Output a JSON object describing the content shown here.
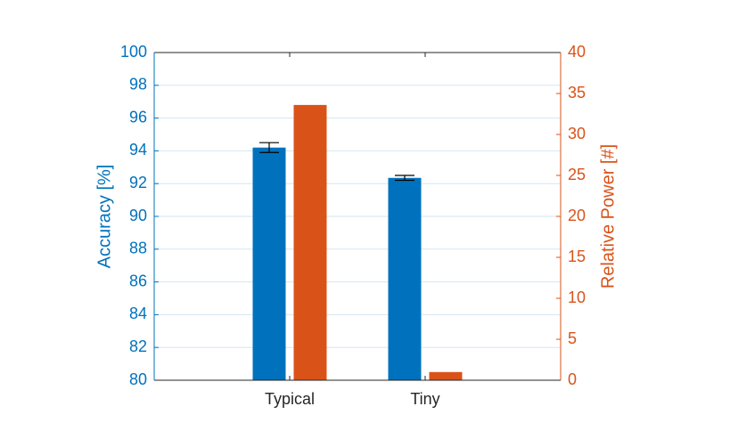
{
  "chart_data": {
    "type": "bar",
    "categories": [
      "Typical",
      "Tiny"
    ],
    "xlim": [
      0,
      3
    ],
    "series": [
      {
        "name": "Accuracy",
        "color": "#0072bd",
        "values": [
          94.2,
          92.35
        ],
        "errors": [
          0.3,
          0.15
        ]
      },
      {
        "name": "Relative Power",
        "color": "#d95319",
        "values": [
          33.6,
          1.0
        ],
        "axis": "y2"
      }
    ],
    "ylabel": "Accuracy [%]",
    "y2label": "Relative Power [#]",
    "ylim": [
      80,
      100
    ],
    "yticks": [
      80,
      82,
      84,
      86,
      88,
      90,
      92,
      94,
      96,
      98,
      100
    ],
    "y2lim": [
      0,
      40
    ],
    "y2ticks": [
      0,
      5,
      10,
      15,
      20,
      25,
      30,
      35,
      40
    ],
    "grid": true
  }
}
